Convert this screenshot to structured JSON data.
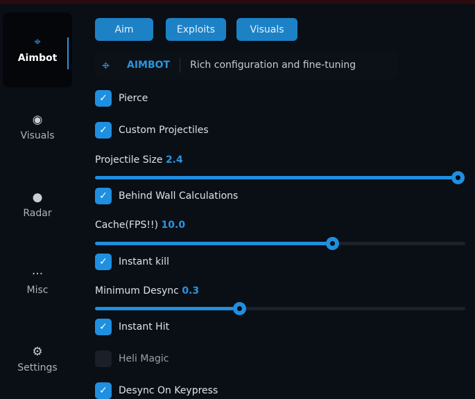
{
  "sidebar": {
    "items": [
      {
        "label": "Aimbot",
        "icon": "crosshair-icon",
        "active": true
      },
      {
        "label": "Visuals",
        "icon": "eye-icon"
      },
      {
        "label": "Radar",
        "icon": "globe-icon"
      },
      {
        "label": "Misc",
        "icon": "ellipsis-icon"
      },
      {
        "label": "Settings",
        "icon": "gear-icon"
      }
    ]
  },
  "tabs": [
    {
      "label": "Aim"
    },
    {
      "label": "Exploits"
    },
    {
      "label": "Visuals"
    }
  ],
  "header": {
    "title": "AIMBOT",
    "description": "Rich configuration and fine-tuning"
  },
  "options": {
    "pierce": {
      "label": "Pierce",
      "checked": true
    },
    "custom_projectiles": {
      "label": "Custom Projectiles",
      "checked": true
    },
    "projectile_size": {
      "label": "Projectile Size",
      "value": "2.4",
      "fill": 0.98
    },
    "behind_wall": {
      "label": "Behind Wall Calculations",
      "checked": true
    },
    "cache": {
      "label": "Cache(FPS!!)",
      "value": "10.0",
      "fill": 0.64
    },
    "instant_kill": {
      "label": "Instant kill",
      "checked": true
    },
    "min_desync": {
      "label": "Minimum Desync",
      "value": "0.3",
      "fill": 0.39
    },
    "instant_hit": {
      "label": "Instant Hit",
      "checked": true
    },
    "heli_magic": {
      "label": "Heli Magic",
      "checked": false
    },
    "desync_keypress": {
      "label": "Desync On Keypress",
      "checked": true
    }
  },
  "colors": {
    "accent": "#1f8fe0",
    "background": "#0a0e15"
  }
}
